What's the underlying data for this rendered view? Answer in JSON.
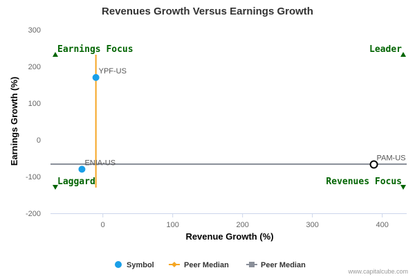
{
  "chart_data": {
    "type": "scatter",
    "title": "Revenues Growth Versus Earnings Growth",
    "xlabel": "Revenue Growth (%)",
    "ylabel": "Earnings Growth (%)",
    "xlim": [
      -75,
      435
    ],
    "ylim": [
      -200,
      300
    ],
    "x_ticks": [
      0,
      100,
      200,
      300,
      400
    ],
    "y_ticks": [
      -200,
      -100,
      0,
      100,
      200,
      300
    ],
    "grid": false,
    "points": [
      {
        "label": "YPF-US",
        "x": -10,
        "y": 170,
        "style": "filled",
        "color": "#1a9fe8"
      },
      {
        "label": "ENIA-US",
        "x": -30,
        "y": -80,
        "style": "filled",
        "color": "#1a9fe8"
      },
      {
        "label": "PAM-US",
        "x": 388,
        "y": -67,
        "style": "hollow",
        "color": "#000000"
      }
    ],
    "peer_median_vertical": {
      "x": -10,
      "y_range": [
        -130,
        232
      ],
      "color": "#f5a623"
    },
    "peer_median_horizontal": {
      "y": -66,
      "x_range": [
        -75,
        435
      ],
      "color": "#8a8f99"
    },
    "quadrants": {
      "top_left": "Earnings Focus",
      "top_right": "Leader",
      "bottom_left": "Laggard",
      "bottom_right": "Revenues Focus"
    },
    "legend": [
      {
        "label": "Symbol",
        "marker": "circle",
        "color": "#1a9fe8"
      },
      {
        "label": "Peer Median",
        "marker": "diamond",
        "color": "#f5a623"
      },
      {
        "label": "Peer Median",
        "marker": "square",
        "color": "#8a8f99"
      }
    ],
    "legend_position": "bottom-center"
  },
  "credit": "www.capitalcube.com",
  "colors": {
    "quadrant_text": "#006400",
    "triangle": "#006400",
    "axis": "#ccd6eb"
  }
}
